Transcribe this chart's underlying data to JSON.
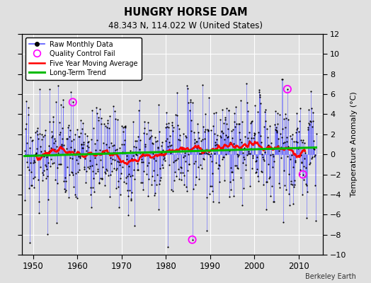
{
  "title": "HUNGRY HORSE DAM",
  "subtitle": "48.343 N, 114.022 W (United States)",
  "ylabel_right": "Temperature Anomaly (°C)",
  "credit": "Berkeley Earth",
  "year_start": 1948,
  "year_end": 2014,
  "ylim": [
    -10,
    12
  ],
  "yticks": [
    -10,
    -8,
    -6,
    -4,
    -2,
    0,
    2,
    4,
    6,
    8,
    10,
    12
  ],
  "xticks": [
    1950,
    1960,
    1970,
    1980,
    1990,
    2000,
    2010
  ],
  "bg_color": "#e0e0e0",
  "plot_bg_color": "#e0e0e0",
  "grid_color": "#ffffff",
  "line_color_raw": "#5555ff",
  "dot_color": "#000000",
  "ma_color": "#ff0000",
  "trend_color": "#00bb00",
  "qc_color": "#ff00ff",
  "seed": 17,
  "n_months": 792
}
